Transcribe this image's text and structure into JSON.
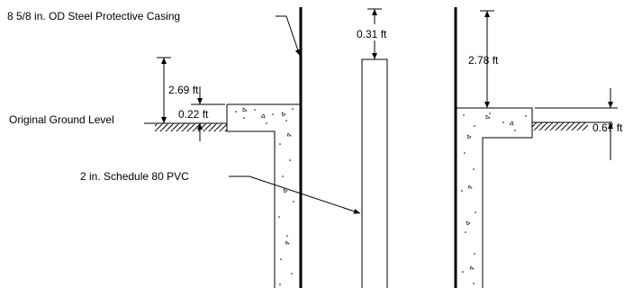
{
  "labels": {
    "casing": "8 5/8 in. OD Steel Protective Casing",
    "pvc": "2 in. Schedule 80 PVC",
    "ground": "Original Ground Level"
  },
  "dimensions": {
    "stickup_casing": "2.69 ft",
    "pad_above_ground_left": "0.22 ft",
    "pvc_top": "0.31 ft",
    "casing_above_pad": "2.78 ft",
    "pad_above_ground_right": "0.67 ft"
  },
  "colors": {
    "line": "#000000",
    "background": "#ffffff"
  }
}
